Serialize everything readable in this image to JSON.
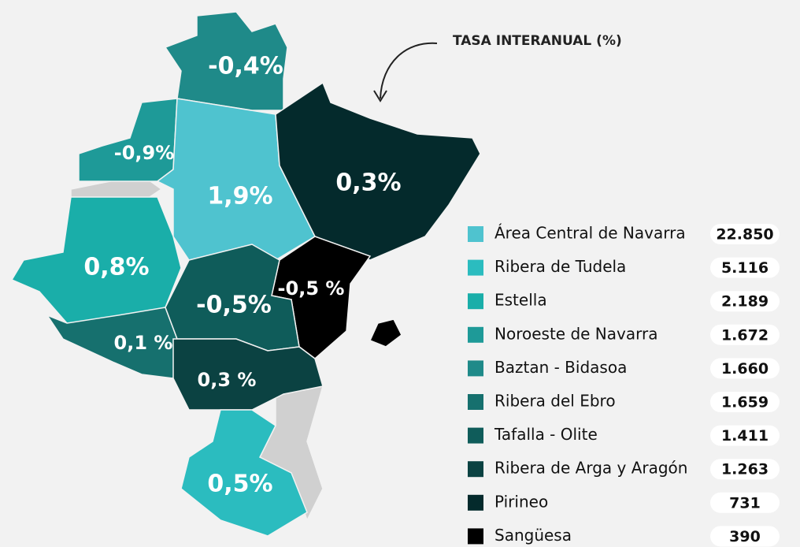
{
  "annotation": "TASA INTERANUAL (%)",
  "legend": [
    {
      "name": "Área Central de Navarra",
      "value": "22.850",
      "color": "#4fc3cf"
    },
    {
      "name": "Ribera de Tudela",
      "value": "5.116",
      "color": "#2bbcbf"
    },
    {
      "name": "Estella",
      "value": "2.189",
      "color": "#1aaea9"
    },
    {
      "name": "Noroeste de Navarra",
      "value": "1.672",
      "color": "#1e9a98"
    },
    {
      "name": "Baztan - Bidasoa",
      "value": "1.660",
      "color": "#1f8a89"
    },
    {
      "name": "Ribera del Ebro",
      "value": "1.659",
      "color": "#16706e"
    },
    {
      "name": "Tafalla - Olite",
      "value": "1.411",
      "color": "#0f5c5a"
    },
    {
      "name": "Ribera de Arga y Aragón",
      "value": "1.263",
      "color": "#0b4242"
    },
    {
      "name": "Pirineo",
      "value": "731",
      "color": "#042a2c"
    },
    {
      "name": "Sangüesa",
      "value": "390",
      "color": "#000000"
    }
  ],
  "regions": [
    {
      "label": "-0,4%"
    },
    {
      "label": "-0,9%"
    },
    {
      "label": "1,9%"
    },
    {
      "label": "0,3%"
    },
    {
      "label": "0,8%"
    },
    {
      "label": "-0,5 %"
    },
    {
      "label": "0,1 %"
    },
    {
      "label": "-0,5%"
    },
    {
      "label": "0,3 %"
    },
    {
      "label": "0,5%"
    }
  ]
}
